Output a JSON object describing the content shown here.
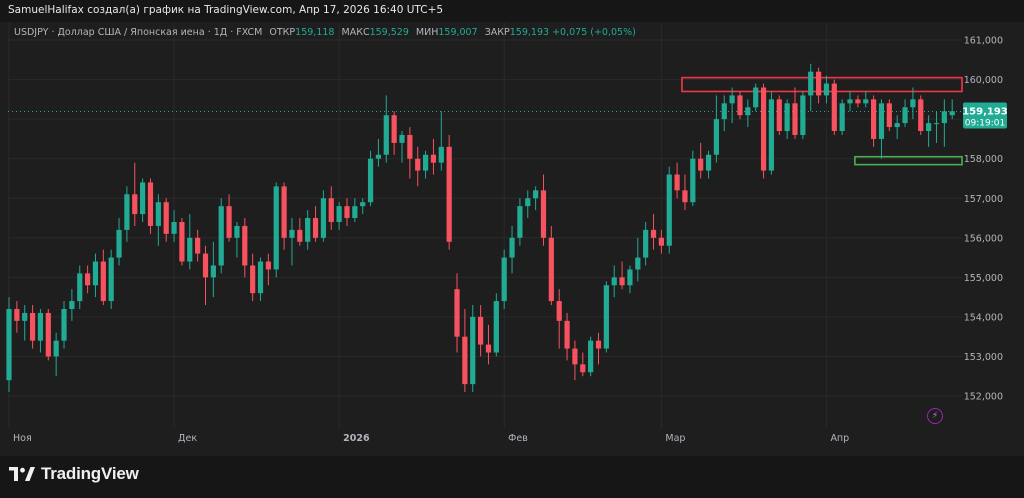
{
  "caption": "SamuelHalifax создал(а) график на TradingView.com, Апр 17, 2026 16:40 UTC+5",
  "legend": {
    "symbol": "USDJPY · Доллар США / Японская иена · 1Д · FXCM",
    "open_label": "ОТКР",
    "open_value": "159,118",
    "high_label": "МАКС",
    "high_value": "159,529",
    "low_label": "МИН",
    "low_value": "159,007",
    "close_label": "ЗАКР",
    "close_value": "159,193",
    "change": "+0,075 (+0,05%)"
  },
  "price_badge": {
    "price": "159,193",
    "countdown": "09:19:01"
  },
  "brand": {
    "name": "TradingView",
    "logo_icon": "tradingview-logo-icon"
  },
  "colors": {
    "up": "#22ab94",
    "down": "#f7525f",
    "badge": "#22ab94",
    "resistance": "#f23645",
    "support": "#4caf50",
    "text": "#b2b5be"
  },
  "chart_data": {
    "type": "candlestick",
    "title": "",
    "xlabel": "",
    "ylabel": "",
    "ylim": [
      151.5,
      161.5
    ],
    "y_ticks": [
      "152,000",
      "153,000",
      "154,000",
      "155,000",
      "156,000",
      "157,000",
      "158,000",
      "159,000",
      "160,000",
      "161,000"
    ],
    "y_tick_values": [
      152,
      153,
      154,
      155,
      156,
      157,
      158,
      159,
      160,
      161
    ],
    "x_ticks": [
      {
        "label": "Ноя",
        "index": 0
      },
      {
        "label": "Дек",
        "index": 21
      },
      {
        "label": "2026",
        "index": 42
      },
      {
        "label": "Фев",
        "index": 63
      },
      {
        "label": "Мар",
        "index": 83
      },
      {
        "label": "Апр",
        "index": 104
      }
    ],
    "last_close": 159.193,
    "zones": [
      {
        "kind": "resistance",
        "from": 159.7,
        "to": 160.05,
        "start_index": 86,
        "end_index": 120
      },
      {
        "kind": "support",
        "from": 157.85,
        "to": 158.05,
        "start_index": 108,
        "end_index": 120
      }
    ],
    "candles": [
      {
        "o": 152.4,
        "h": 154.5,
        "l": 152.1,
        "c": 154.2
      },
      {
        "o": 154.2,
        "h": 154.4,
        "l": 153.6,
        "c": 153.9
      },
      {
        "o": 153.9,
        "h": 154.3,
        "l": 153.4,
        "c": 154.1
      },
      {
        "o": 154.1,
        "h": 154.3,
        "l": 153.2,
        "c": 153.4
      },
      {
        "o": 153.4,
        "h": 154.2,
        "l": 153.1,
        "c": 154.1
      },
      {
        "o": 154.1,
        "h": 154.2,
        "l": 152.9,
        "c": 153.0
      },
      {
        "o": 153.0,
        "h": 153.6,
        "l": 152.5,
        "c": 153.4
      },
      {
        "o": 153.4,
        "h": 154.4,
        "l": 153.2,
        "c": 154.2
      },
      {
        "o": 154.2,
        "h": 154.7,
        "l": 153.9,
        "c": 154.4
      },
      {
        "o": 154.4,
        "h": 155.3,
        "l": 154.2,
        "c": 155.1
      },
      {
        "o": 155.1,
        "h": 155.3,
        "l": 154.6,
        "c": 154.8
      },
      {
        "o": 154.8,
        "h": 155.6,
        "l": 154.5,
        "c": 155.4
      },
      {
        "o": 155.4,
        "h": 155.7,
        "l": 154.3,
        "c": 154.4
      },
      {
        "o": 154.4,
        "h": 155.7,
        "l": 154.2,
        "c": 155.5
      },
      {
        "o": 155.5,
        "h": 156.5,
        "l": 155.3,
        "c": 156.2
      },
      {
        "o": 156.2,
        "h": 157.3,
        "l": 155.9,
        "c": 157.1
      },
      {
        "o": 157.1,
        "h": 157.9,
        "l": 156.3,
        "c": 156.6
      },
      {
        "o": 156.6,
        "h": 157.5,
        "l": 156.4,
        "c": 157.4
      },
      {
        "o": 157.4,
        "h": 157.5,
        "l": 156.1,
        "c": 156.3
      },
      {
        "o": 156.3,
        "h": 157.1,
        "l": 155.8,
        "c": 156.9
      },
      {
        "o": 156.9,
        "h": 157.0,
        "l": 155.9,
        "c": 156.1
      },
      {
        "o": 156.1,
        "h": 156.7,
        "l": 155.9,
        "c": 156.4
      },
      {
        "o": 156.4,
        "h": 156.5,
        "l": 155.3,
        "c": 155.4
      },
      {
        "o": 155.4,
        "h": 156.6,
        "l": 155.2,
        "c": 156.0
      },
      {
        "o": 156.0,
        "h": 156.2,
        "l": 155.4,
        "c": 155.6
      },
      {
        "o": 155.6,
        "h": 155.8,
        "l": 154.3,
        "c": 155.0
      },
      {
        "o": 155.0,
        "h": 155.9,
        "l": 154.5,
        "c": 155.3
      },
      {
        "o": 155.3,
        "h": 157.0,
        "l": 155.1,
        "c": 156.8
      },
      {
        "o": 156.8,
        "h": 157.1,
        "l": 155.9,
        "c": 156.0
      },
      {
        "o": 156.0,
        "h": 156.4,
        "l": 155.5,
        "c": 156.3
      },
      {
        "o": 156.3,
        "h": 156.5,
        "l": 155.0,
        "c": 155.3
      },
      {
        "o": 155.3,
        "h": 155.6,
        "l": 154.4,
        "c": 154.6
      },
      {
        "o": 154.6,
        "h": 155.5,
        "l": 154.4,
        "c": 155.4
      },
      {
        "o": 155.4,
        "h": 155.6,
        "l": 154.8,
        "c": 155.2
      },
      {
        "o": 155.2,
        "h": 157.4,
        "l": 155.0,
        "c": 157.3
      },
      {
        "o": 157.3,
        "h": 157.4,
        "l": 155.7,
        "c": 156.0
      },
      {
        "o": 156.0,
        "h": 156.5,
        "l": 155.3,
        "c": 156.2
      },
      {
        "o": 156.2,
        "h": 156.5,
        "l": 155.8,
        "c": 155.9
      },
      {
        "o": 155.9,
        "h": 156.7,
        "l": 155.7,
        "c": 156.5
      },
      {
        "o": 156.5,
        "h": 156.8,
        "l": 155.9,
        "c": 156.0
      },
      {
        "o": 156.0,
        "h": 157.2,
        "l": 155.9,
        "c": 157.0
      },
      {
        "o": 157.0,
        "h": 157.3,
        "l": 156.2,
        "c": 156.4
      },
      {
        "o": 156.4,
        "h": 156.9,
        "l": 156.2,
        "c": 156.8
      },
      {
        "o": 156.8,
        "h": 157.0,
        "l": 156.3,
        "c": 156.5
      },
      {
        "o": 156.5,
        "h": 157.0,
        "l": 156.4,
        "c": 156.8
      },
      {
        "o": 156.8,
        "h": 157.0,
        "l": 156.6,
        "c": 156.9
      },
      {
        "o": 156.9,
        "h": 158.2,
        "l": 156.8,
        "c": 158.0
      },
      {
        "o": 158.0,
        "h": 158.5,
        "l": 157.8,
        "c": 158.1
      },
      {
        "o": 158.1,
        "h": 159.6,
        "l": 157.9,
        "c": 159.1
      },
      {
        "o": 159.1,
        "h": 159.2,
        "l": 158.1,
        "c": 158.4
      },
      {
        "o": 158.4,
        "h": 158.7,
        "l": 157.9,
        "c": 158.6
      },
      {
        "o": 158.6,
        "h": 158.8,
        "l": 157.5,
        "c": 158.0
      },
      {
        "o": 158.0,
        "h": 158.3,
        "l": 157.3,
        "c": 157.7
      },
      {
        "o": 157.7,
        "h": 158.2,
        "l": 157.5,
        "c": 158.1
      },
      {
        "o": 158.1,
        "h": 158.5,
        "l": 157.6,
        "c": 157.9
      },
      {
        "o": 157.9,
        "h": 159.2,
        "l": 157.7,
        "c": 158.3
      },
      {
        "o": 158.3,
        "h": 158.6,
        "l": 155.7,
        "c": 155.9
      },
      {
        "o": 154.7,
        "h": 155.1,
        "l": 153.1,
        "c": 153.5
      },
      {
        "o": 153.5,
        "h": 154.2,
        "l": 152.1,
        "c": 152.3
      },
      {
        "o": 152.3,
        "h": 154.3,
        "l": 152.1,
        "c": 154.0
      },
      {
        "o": 154.0,
        "h": 154.3,
        "l": 153.0,
        "c": 153.3
      },
      {
        "o": 153.3,
        "h": 153.8,
        "l": 152.8,
        "c": 153.1
      },
      {
        "o": 153.1,
        "h": 154.6,
        "l": 153.0,
        "c": 154.4
      },
      {
        "o": 154.4,
        "h": 155.7,
        "l": 154.2,
        "c": 155.5
      },
      {
        "o": 155.5,
        "h": 156.3,
        "l": 155.1,
        "c": 156.0
      },
      {
        "o": 156.0,
        "h": 157.0,
        "l": 155.8,
        "c": 156.8
      },
      {
        "o": 156.8,
        "h": 157.2,
        "l": 156.5,
        "c": 157.0
      },
      {
        "o": 157.0,
        "h": 157.3,
        "l": 156.7,
        "c": 157.2
      },
      {
        "o": 157.2,
        "h": 157.6,
        "l": 155.8,
        "c": 156.0
      },
      {
        "o": 156.0,
        "h": 156.3,
        "l": 154.3,
        "c": 154.4
      },
      {
        "o": 154.4,
        "h": 154.7,
        "l": 153.2,
        "c": 153.9
      },
      {
        "o": 153.9,
        "h": 154.1,
        "l": 152.9,
        "c": 153.2
      },
      {
        "o": 153.2,
        "h": 153.4,
        "l": 152.4,
        "c": 152.8
      },
      {
        "o": 152.8,
        "h": 153.1,
        "l": 152.5,
        "c": 152.6
      },
      {
        "o": 152.6,
        "h": 153.5,
        "l": 152.5,
        "c": 153.4
      },
      {
        "o": 153.4,
        "h": 153.6,
        "l": 152.8,
        "c": 153.2
      },
      {
        "o": 153.2,
        "h": 154.9,
        "l": 153.1,
        "c": 154.8
      },
      {
        "o": 154.8,
        "h": 155.3,
        "l": 154.5,
        "c": 155.0
      },
      {
        "o": 155.0,
        "h": 155.4,
        "l": 154.7,
        "c": 154.8
      },
      {
        "o": 154.8,
        "h": 155.3,
        "l": 154.6,
        "c": 155.2
      },
      {
        "o": 155.2,
        "h": 156.0,
        "l": 154.9,
        "c": 155.5
      },
      {
        "o": 155.5,
        "h": 156.4,
        "l": 155.3,
        "c": 156.2
      },
      {
        "o": 156.2,
        "h": 156.6,
        "l": 155.7,
        "c": 156.0
      },
      {
        "o": 156.0,
        "h": 156.2,
        "l": 155.6,
        "c": 155.8
      },
      {
        "o": 155.8,
        "h": 157.8,
        "l": 155.6,
        "c": 157.6
      },
      {
        "o": 157.6,
        "h": 157.9,
        "l": 157.0,
        "c": 157.2
      },
      {
        "o": 157.2,
        "h": 157.6,
        "l": 156.7,
        "c": 156.9
      },
      {
        "o": 156.9,
        "h": 158.2,
        "l": 156.8,
        "c": 158.0
      },
      {
        "o": 158.0,
        "h": 158.4,
        "l": 157.5,
        "c": 157.7
      },
      {
        "o": 157.7,
        "h": 158.2,
        "l": 157.5,
        "c": 158.1
      },
      {
        "o": 158.1,
        "h": 159.6,
        "l": 157.9,
        "c": 159.0
      },
      {
        "o": 159.0,
        "h": 159.6,
        "l": 158.7,
        "c": 159.4
      },
      {
        "o": 159.4,
        "h": 159.8,
        "l": 158.9,
        "c": 159.6
      },
      {
        "o": 159.6,
        "h": 159.7,
        "l": 159.0,
        "c": 159.1
      },
      {
        "o": 159.1,
        "h": 159.5,
        "l": 158.8,
        "c": 159.3
      },
      {
        "o": 159.3,
        "h": 159.9,
        "l": 159.2,
        "c": 159.8
      },
      {
        "o": 159.8,
        "h": 159.9,
        "l": 157.5,
        "c": 157.7
      },
      {
        "o": 157.7,
        "h": 159.7,
        "l": 157.6,
        "c": 159.5
      },
      {
        "o": 159.5,
        "h": 159.6,
        "l": 158.6,
        "c": 158.7
      },
      {
        "o": 158.7,
        "h": 159.5,
        "l": 158.5,
        "c": 159.4
      },
      {
        "o": 159.4,
        "h": 159.8,
        "l": 158.5,
        "c": 158.6
      },
      {
        "o": 158.6,
        "h": 159.7,
        "l": 158.5,
        "c": 159.6
      },
      {
        "o": 159.6,
        "h": 160.4,
        "l": 159.2,
        "c": 160.2
      },
      {
        "o": 160.2,
        "h": 160.3,
        "l": 159.4,
        "c": 159.6
      },
      {
        "o": 159.6,
        "h": 160.1,
        "l": 159.4,
        "c": 159.9
      },
      {
        "o": 159.9,
        "h": 160.0,
        "l": 158.6,
        "c": 158.7
      },
      {
        "o": 158.7,
        "h": 159.5,
        "l": 158.6,
        "c": 159.4
      },
      {
        "o": 159.4,
        "h": 159.7,
        "l": 159.2,
        "c": 159.5
      },
      {
        "o": 159.5,
        "h": 159.6,
        "l": 159.3,
        "c": 159.4
      },
      {
        "o": 159.4,
        "h": 159.7,
        "l": 159.3,
        "c": 159.5
      },
      {
        "o": 159.5,
        "h": 159.6,
        "l": 158.3,
        "c": 158.5
      },
      {
        "o": 158.5,
        "h": 159.5,
        "l": 158.0,
        "c": 159.4
      },
      {
        "o": 159.4,
        "h": 159.5,
        "l": 158.7,
        "c": 158.8
      },
      {
        "o": 158.8,
        "h": 159.1,
        "l": 158.5,
        "c": 158.9
      },
      {
        "o": 158.9,
        "h": 159.5,
        "l": 158.8,
        "c": 159.3
      },
      {
        "o": 159.3,
        "h": 159.8,
        "l": 159.0,
        "c": 159.5
      },
      {
        "o": 159.5,
        "h": 159.6,
        "l": 158.6,
        "c": 158.7
      },
      {
        "o": 158.7,
        "h": 159.1,
        "l": 158.3,
        "c": 158.9
      },
      {
        "o": 158.9,
        "h": 159.2,
        "l": 158.4,
        "c": 158.9
      },
      {
        "o": 158.9,
        "h": 159.5,
        "l": 158.3,
        "c": 159.2
      },
      {
        "o": 159.1,
        "h": 159.5,
        "l": 159.0,
        "c": 159.2
      }
    ]
  }
}
